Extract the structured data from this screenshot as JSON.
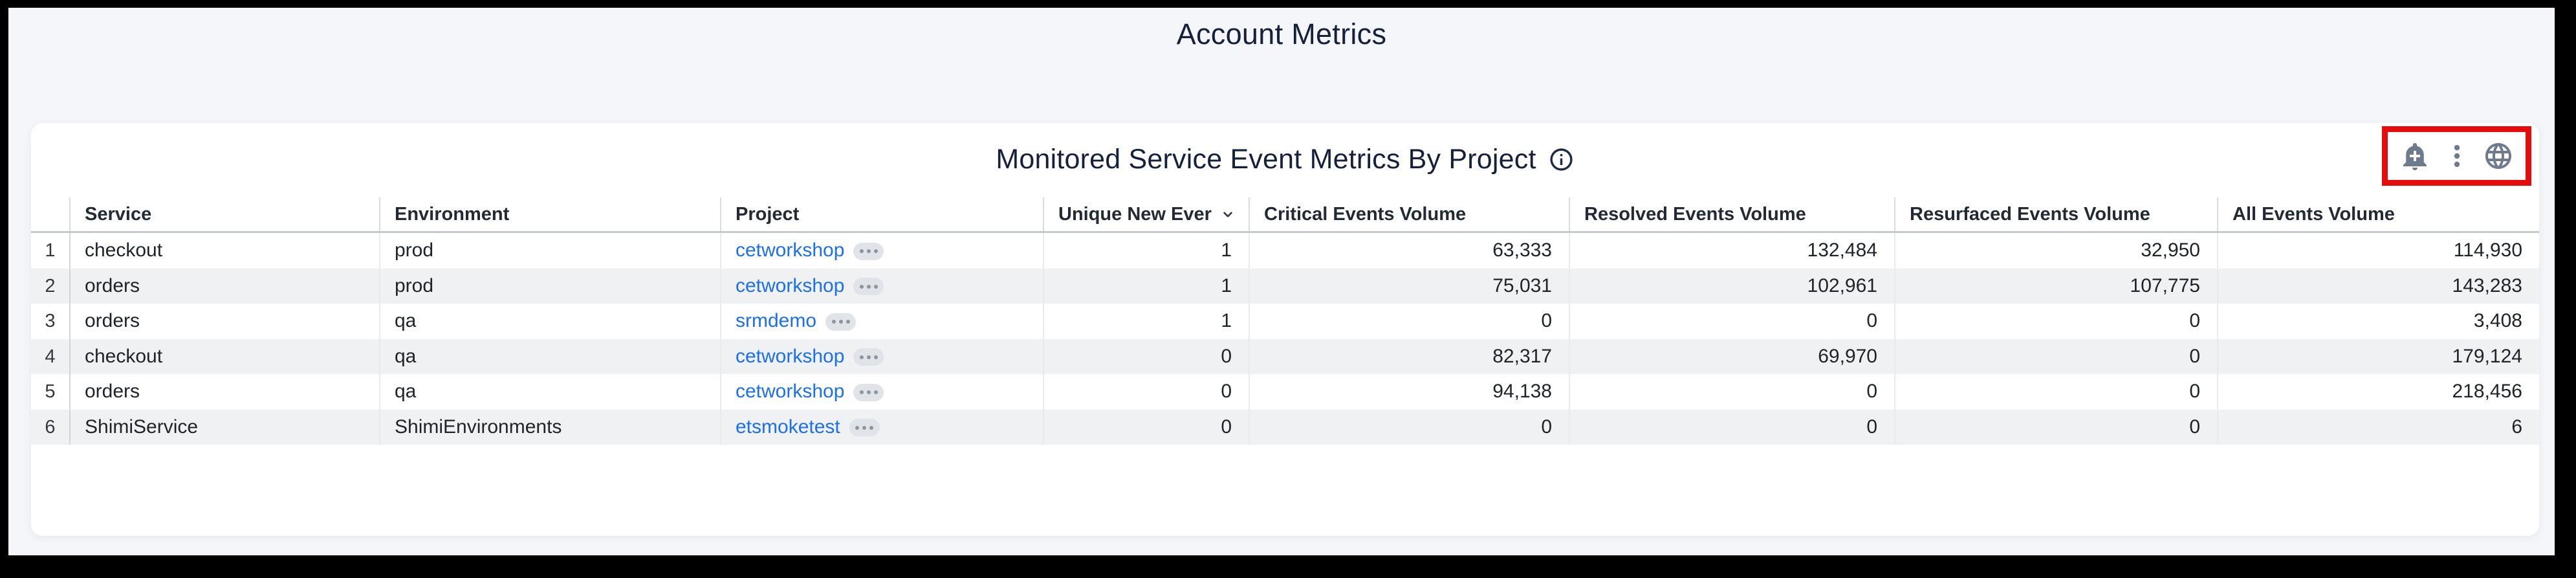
{
  "page": {
    "title": "Account Metrics"
  },
  "widget": {
    "title": "Monitored Service Event Metrics By Project",
    "info_icon": "info-icon",
    "toolbar": {
      "icons": [
        {
          "name": "add-alert-icon",
          "glyph": "bell-plus"
        },
        {
          "name": "kebab-menu-icon",
          "glyph": "vertical-dots"
        },
        {
          "name": "globe-icon",
          "glyph": "globe"
        }
      ],
      "annotation": "red-highlight-box"
    }
  },
  "table": {
    "columns": [
      {
        "key": "num",
        "label": "",
        "align": "num"
      },
      {
        "key": "service",
        "label": "Service",
        "align": "left"
      },
      {
        "key": "environment",
        "label": "Environment",
        "align": "left"
      },
      {
        "key": "project",
        "label": "Project",
        "align": "left",
        "type": "link"
      },
      {
        "key": "unique_new",
        "label": "Unique New Ever",
        "align": "right",
        "sorted": "desc"
      },
      {
        "key": "critical",
        "label": "Critical Events Volume",
        "align": "right"
      },
      {
        "key": "resolved",
        "label": "Resolved Events Volume",
        "align": "right"
      },
      {
        "key": "resurfaced",
        "label": "Resurfaced Events Volume",
        "align": "right"
      },
      {
        "key": "all",
        "label": "All Events Volume",
        "align": "right"
      }
    ],
    "rows": [
      {
        "num": "1",
        "service": "checkout",
        "environment": "prod",
        "project": "cetworkshop",
        "unique_new": "1",
        "critical": "63,333",
        "resolved": "132,484",
        "resurfaced": "32,950",
        "all": "114,930"
      },
      {
        "num": "2",
        "service": "orders",
        "environment": "prod",
        "project": "cetworkshop",
        "unique_new": "1",
        "critical": "75,031",
        "resolved": "102,961",
        "resurfaced": "107,775",
        "all": "143,283"
      },
      {
        "num": "3",
        "service": "orders",
        "environment": "qa",
        "project": "srmdemo",
        "unique_new": "1",
        "critical": "0",
        "resolved": "0",
        "resurfaced": "0",
        "all": "3,408"
      },
      {
        "num": "4",
        "service": "checkout",
        "environment": "qa",
        "project": "cetworkshop",
        "unique_new": "0",
        "critical": "82,317",
        "resolved": "69,970",
        "resurfaced": "0",
        "all": "179,124"
      },
      {
        "num": "5",
        "service": "orders",
        "environment": "qa",
        "project": "cetworkshop",
        "unique_new": "0",
        "critical": "94,138",
        "resolved": "0",
        "resurfaced": "0",
        "all": "218,456"
      },
      {
        "num": "6",
        "service": "ShimiService",
        "environment": "ShimiEnvironments",
        "project": "etsmoketest",
        "unique_new": "0",
        "critical": "0",
        "resolved": "0",
        "resurfaced": "0",
        "all": "6"
      }
    ]
  },
  "colors": {
    "title": "#15213b",
    "link": "#1a6ff2",
    "icon": "#6e7b8e",
    "annotation_red": "#e60c0c"
  }
}
